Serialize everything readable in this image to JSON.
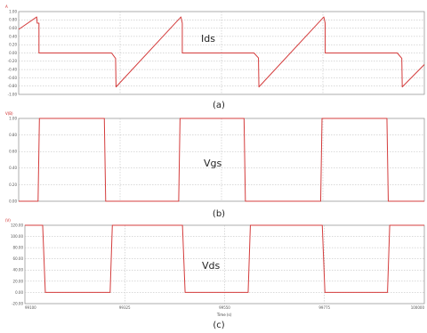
{
  "chart_data": [
    {
      "type": "line",
      "caption": "(a)",
      "annotation": "Ids",
      "unit_label": "A",
      "xlim": [
        99100,
        100000
      ],
      "ylim": [
        -1.0,
        1.0
      ],
      "y_ticks": [
        1.0,
        0.8,
        0.6,
        0.4,
        0.2,
        0.0,
        -0.2,
        -0.4,
        -0.6,
        -0.8,
        -1.0
      ],
      "y_tick_labels": [
        "1.00",
        "0.80",
        "0.60",
        "0.40",
        "0.20",
        "0.00",
        "-0.20",
        "-0.40",
        "-0.60",
        "-0.80",
        "-1.00"
      ],
      "series": [
        {
          "color": "#d43c3c",
          "x": [
            99100,
            99140,
            99141,
            99145,
            99145,
            99306,
            99315,
            99316,
            99460,
            99463,
            99463,
            99622,
            99632,
            99633,
            99777,
            99780,
            99780,
            99940,
            99950,
            99951,
            100000
          ],
          "y": [
            0.57,
            0.87,
            0.72,
            0.72,
            0.0,
            0.0,
            -0.13,
            -0.82,
            0.87,
            0.72,
            0.0,
            0.0,
            -0.12,
            -0.82,
            0.87,
            0.72,
            0.0,
            0.0,
            -0.13,
            -0.82,
            -0.28
          ]
        }
      ]
    },
    {
      "type": "line",
      "caption": "(b)",
      "annotation": "Vgs",
      "unit_label": "V(B)",
      "xlim": [
        99100,
        100000
      ],
      "ylim": [
        0.0,
        1.0
      ],
      "y_ticks": [
        1.0,
        0.8,
        0.6,
        0.4,
        0.2,
        0.0
      ],
      "y_tick_labels": [
        "1.00",
        "0.80",
        "0.60",
        "0.40",
        "0.20",
        "0.00"
      ],
      "series": [
        {
          "color": "#d43c3c",
          "x": [
            99100,
            99143,
            99146,
            99290,
            99293,
            99455,
            99458,
            99600,
            99603,
            99770,
            99773,
            99917,
            99920,
            100000
          ],
          "y": [
            0,
            0,
            1,
            1,
            0,
            0,
            1,
            1,
            0,
            0,
            1,
            1,
            0,
            0
          ]
        }
      ]
    },
    {
      "type": "line",
      "caption": "(c)",
      "annotation": "Vds",
      "unit_label": "(V)",
      "xlim": [
        99100,
        100000
      ],
      "ylim": [
        -20.0,
        120.0
      ],
      "y_ticks": [
        120,
        100,
        80,
        60,
        40,
        20,
        0,
        -20
      ],
      "y_tick_labels": [
        "120.00",
        "100.00",
        "80.00",
        "60.00",
        "40.00",
        "20.00",
        "0.00",
        "-20.00"
      ],
      "x_ticks": [
        99100,
        99325,
        99550,
        99775,
        100000
      ],
      "x_tick_labels": [
        "99100",
        "99325",
        "99550",
        "99775",
        "100000"
      ],
      "xlabel": "Time (s)",
      "series": [
        {
          "color": "#d43c3c",
          "x": [
            99100,
            99140,
            99146,
            99292,
            99297,
            99455,
            99461,
            99603,
            99608,
            99770,
            99776,
            99917,
            99922,
            100000
          ],
          "y": [
            120,
            120,
            0,
            0,
            120,
            120,
            0,
            0,
            120,
            120,
            0,
            0,
            120,
            120
          ]
        }
      ]
    }
  ]
}
